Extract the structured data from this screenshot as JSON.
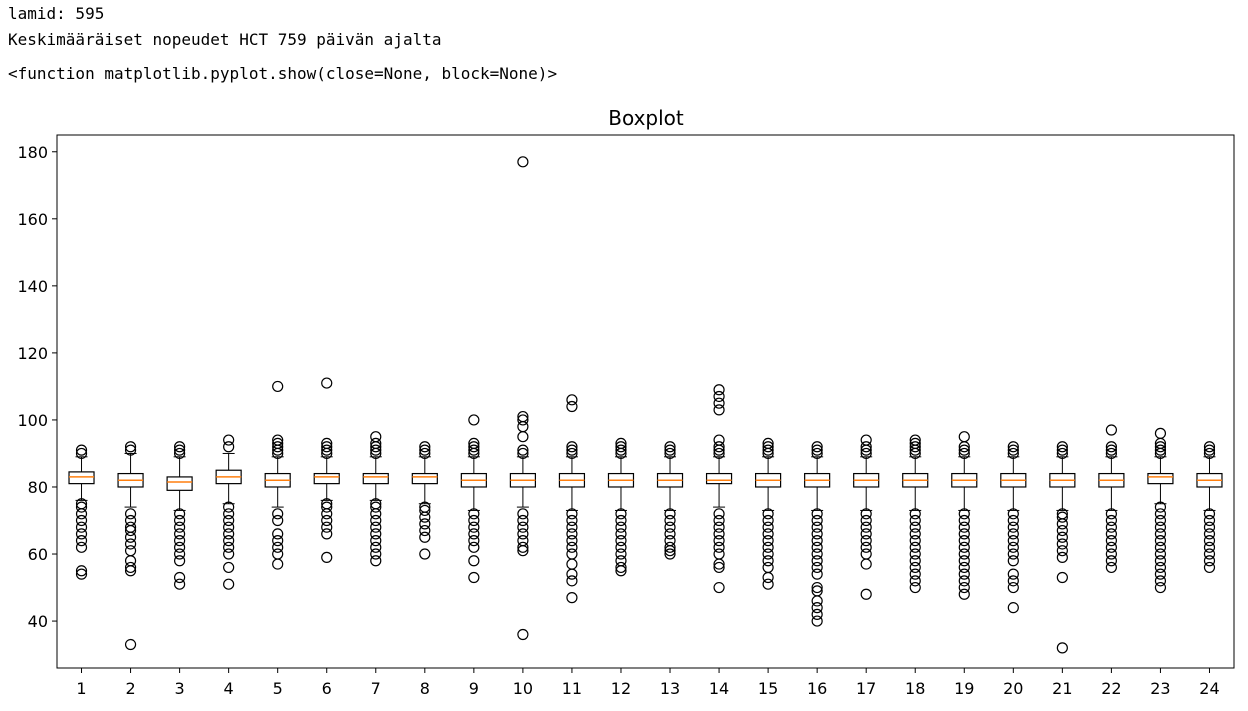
{
  "output": {
    "line1": "lamid: 595",
    "line2": "Keskimääräiset nopeudet HCT 759 päivän ajalta",
    "line3": "<function matplotlib.pyplot.show(close=None, block=None)>"
  },
  "chart_data": {
    "type": "boxplot",
    "title": "Boxplot",
    "xlabel": "",
    "ylabel": "",
    "ylim": [
      26,
      185
    ],
    "yticks": [
      40,
      60,
      80,
      100,
      120,
      140,
      160,
      180
    ],
    "categories": [
      "1",
      "2",
      "3",
      "4",
      "5",
      "6",
      "7",
      "8",
      "9",
      "10",
      "11",
      "12",
      "13",
      "14",
      "15",
      "16",
      "17",
      "18",
      "19",
      "20",
      "21",
      "22",
      "23",
      "24"
    ],
    "colors": {
      "box": "#000000",
      "median": "#ff7f0e"
    },
    "boxes": [
      {
        "whislo": 76,
        "q1": 81,
        "median": 83,
        "q3": 84.5,
        "whishi": 89,
        "fliers": [
          54,
          55,
          62,
          64,
          66,
          68,
          70,
          72,
          74,
          75,
          90,
          91
        ]
      },
      {
        "whislo": 74,
        "q1": 80,
        "median": 82,
        "q3": 84,
        "whishi": 90,
        "fliers": [
          33,
          55,
          56,
          58,
          61,
          63,
          65,
          67,
          68,
          70,
          72,
          91,
          92
        ]
      },
      {
        "whislo": 73,
        "q1": 79,
        "median": 81.5,
        "q3": 83,
        "whishi": 89,
        "fliers": [
          51,
          53,
          58,
          60,
          62,
          64,
          66,
          68,
          70,
          72,
          90,
          91,
          92
        ]
      },
      {
        "whislo": 75,
        "q1": 81,
        "median": 83,
        "q3": 85,
        "whishi": 90,
        "fliers": [
          51,
          56,
          60,
          62,
          64,
          66,
          68,
          70,
          72,
          74,
          92,
          94
        ]
      },
      {
        "whislo": 74,
        "q1": 80,
        "median": 82,
        "q3": 84,
        "whishi": 89,
        "fliers": [
          57,
          60,
          62,
          64,
          66,
          70,
          72,
          90,
          91,
          92,
          93,
          94,
          110
        ]
      },
      {
        "whislo": 76,
        "q1": 81,
        "median": 83,
        "q3": 84,
        "whishi": 89,
        "fliers": [
          59,
          66,
          68,
          70,
          72,
          74,
          75,
          90,
          91,
          92,
          93,
          111
        ]
      },
      {
        "whislo": 76,
        "q1": 81,
        "median": 83,
        "q3": 84,
        "whishi": 89,
        "fliers": [
          58,
          60,
          62,
          64,
          66,
          68,
          70,
          72,
          74,
          75,
          90,
          91,
          92,
          93,
          95
        ]
      },
      {
        "whislo": 75,
        "q1": 81,
        "median": 83,
        "q3": 84,
        "whishi": 89,
        "fliers": [
          60,
          65,
          67,
          69,
          71,
          73,
          74,
          90,
          91,
          92
        ]
      },
      {
        "whislo": 73,
        "q1": 80,
        "median": 82,
        "q3": 84,
        "whishi": 89,
        "fliers": [
          53,
          58,
          62,
          64,
          66,
          68,
          70,
          72,
          90,
          91,
          92,
          93,
          100
        ]
      },
      {
        "whislo": 74,
        "q1": 80,
        "median": 82,
        "q3": 84,
        "whishi": 89,
        "fliers": [
          36,
          61,
          62,
          64,
          66,
          68,
          70,
          72,
          90,
          91,
          95,
          98,
          100,
          101,
          177
        ]
      },
      {
        "whislo": 73,
        "q1": 80,
        "median": 82,
        "q3": 84,
        "whishi": 89,
        "fliers": [
          47,
          52,
          54,
          57,
          60,
          62,
          64,
          66,
          68,
          70,
          72,
          90,
          91,
          92,
          104,
          106
        ]
      },
      {
        "whislo": 73,
        "q1": 80,
        "median": 82,
        "q3": 84,
        "whishi": 89,
        "fliers": [
          55,
          56,
          58,
          60,
          62,
          64,
          66,
          68,
          70,
          72,
          90,
          91,
          92,
          93
        ]
      },
      {
        "whislo": 73,
        "q1": 80,
        "median": 82,
        "q3": 84,
        "whishi": 89,
        "fliers": [
          60,
          61,
          62,
          64,
          66,
          68,
          70,
          72,
          90,
          91,
          92
        ]
      },
      {
        "whislo": 74,
        "q1": 81,
        "median": 82,
        "q3": 84,
        "whishi": 89,
        "fliers": [
          50,
          56,
          57,
          60,
          62,
          64,
          66,
          68,
          70,
          72,
          90,
          91,
          92,
          94,
          103,
          105,
          107,
          109
        ]
      },
      {
        "whislo": 73,
        "q1": 80,
        "median": 82,
        "q3": 84,
        "whishi": 89,
        "fliers": [
          51,
          53,
          56,
          58,
          60,
          62,
          64,
          66,
          68,
          70,
          72,
          90,
          91,
          92,
          93
        ]
      },
      {
        "whislo": 73,
        "q1": 80,
        "median": 82,
        "q3": 84,
        "whishi": 89,
        "fliers": [
          40,
          42,
          44,
          46,
          49,
          50,
          54,
          56,
          58,
          60,
          62,
          64,
          66,
          68,
          70,
          72,
          90,
          91,
          92
        ]
      },
      {
        "whislo": 73,
        "q1": 80,
        "median": 82,
        "q3": 84,
        "whishi": 89,
        "fliers": [
          48,
          57,
          60,
          62,
          64,
          66,
          68,
          70,
          72,
          90,
          91,
          92,
          94
        ]
      },
      {
        "whislo": 73,
        "q1": 80,
        "median": 82,
        "q3": 84,
        "whishi": 89,
        "fliers": [
          50,
          52,
          54,
          56,
          58,
          60,
          62,
          64,
          66,
          68,
          70,
          72,
          90,
          91,
          92,
          93,
          94
        ]
      },
      {
        "whislo": 73,
        "q1": 80,
        "median": 82,
        "q3": 84,
        "whishi": 89,
        "fliers": [
          48,
          50,
          52,
          54,
          56,
          58,
          60,
          62,
          64,
          66,
          68,
          70,
          72,
          90,
          91,
          92,
          95
        ]
      },
      {
        "whislo": 73,
        "q1": 80,
        "median": 82,
        "q3": 84,
        "whishi": 89,
        "fliers": [
          44,
          50,
          52,
          54,
          58,
          60,
          62,
          64,
          66,
          68,
          70,
          72,
          90,
          91,
          92
        ]
      },
      {
        "whislo": 73,
        "q1": 80,
        "median": 82,
        "q3": 84,
        "whishi": 89,
        "fliers": [
          32,
          53,
          59,
          61,
          63,
          65,
          67,
          69,
          71,
          72,
          90,
          91,
          92
        ]
      },
      {
        "whislo": 73,
        "q1": 80,
        "median": 82,
        "q3": 84,
        "whishi": 89,
        "fliers": [
          56,
          58,
          60,
          62,
          64,
          66,
          68,
          70,
          72,
          90,
          91,
          92,
          97
        ]
      },
      {
        "whislo": 75,
        "q1": 81,
        "median": 83,
        "q3": 84,
        "whishi": 89,
        "fliers": [
          50,
          52,
          54,
          56,
          58,
          60,
          62,
          64,
          66,
          68,
          70,
          72,
          74,
          90,
          91,
          92,
          93,
          96
        ]
      },
      {
        "whislo": 73,
        "q1": 80,
        "median": 82,
        "q3": 84,
        "whishi": 89,
        "fliers": [
          56,
          58,
          60,
          62,
          64,
          66,
          68,
          70,
          72,
          90,
          91,
          92
        ]
      }
    ]
  }
}
